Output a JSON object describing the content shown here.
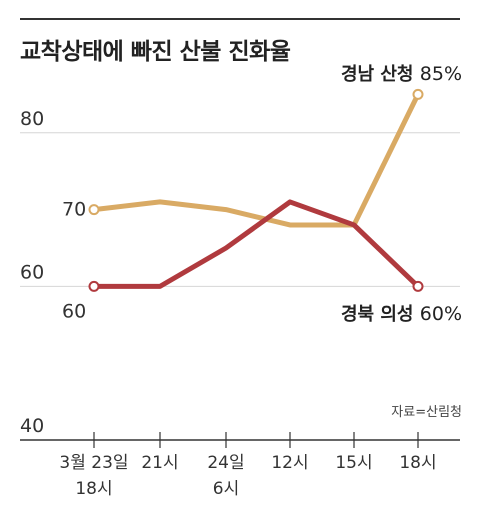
{
  "chart_data": {
    "type": "line",
    "title": "교착상태에 빠진 산불 진화율",
    "x": [
      [
        "3월 23일",
        "18시"
      ],
      [
        "21시"
      ],
      [
        "24일",
        "6시"
      ],
      [
        "12시"
      ],
      [
        "15시"
      ],
      [
        "18시"
      ]
    ],
    "ylim": [
      40,
      90
    ],
    "yticks": [
      40,
      60,
      80
    ],
    "series": [
      {
        "name": "경남 산청",
        "values": [
          70,
          71,
          70,
          68,
          68,
          85
        ],
        "color": "#d9aa64",
        "start_label": "70",
        "end_label": "85%"
      },
      {
        "name": "경북 의성",
        "values": [
          60,
          60,
          65,
          71,
          68,
          60
        ],
        "color": "#b03a3e",
        "start_label": "60",
        "end_label": "60%"
      }
    ],
    "source": "자료=산림청"
  }
}
